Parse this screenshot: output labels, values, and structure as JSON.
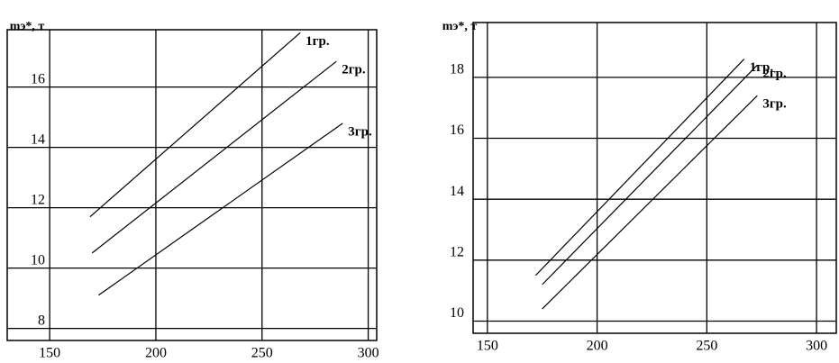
{
  "chart_data": [
    {
      "type": "line",
      "y_label": "mэ*, т",
      "xlim": [
        130,
        304
      ],
      "ylim": [
        7.6,
        17.9
      ],
      "xticks": [
        150,
        200,
        250,
        300
      ],
      "yticks": [
        8,
        10,
        12,
        14,
        16
      ],
      "series": [
        {
          "name": "1гр.",
          "color": "#000000",
          "x": [
            169,
            268
          ],
          "values": [
            11.7,
            17.8
          ]
        },
        {
          "name": "2гр.",
          "color": "#000000",
          "x": [
            170,
            285
          ],
          "values": [
            10.5,
            16.85
          ]
        },
        {
          "name": "3гр.",
          "color": "#000000",
          "x": [
            173,
            288
          ],
          "values": [
            9.1,
            14.8
          ]
        }
      ]
    },
    {
      "type": "line",
      "y_label": "mэ*, т",
      "xlim": [
        143.5,
        309
      ],
      "ylim": [
        9.6,
        19.8
      ],
      "xticks": [
        150,
        200,
        250,
        300
      ],
      "yticks": [
        10,
        12,
        14,
        16,
        18
      ],
      "series": [
        {
          "name": "1гр.",
          "color": "#000000",
          "x": [
            172,
            267
          ],
          "values": [
            11.5,
            18.6
          ]
        },
        {
          "name": "2гр.",
          "color": "#000000",
          "x": [
            175,
            273
          ],
          "values": [
            11.2,
            18.4
          ]
        },
        {
          "name": "3гр.",
          "color": "#000000",
          "x": [
            175,
            273
          ],
          "values": [
            10.4,
            17.4
          ]
        }
      ]
    }
  ]
}
